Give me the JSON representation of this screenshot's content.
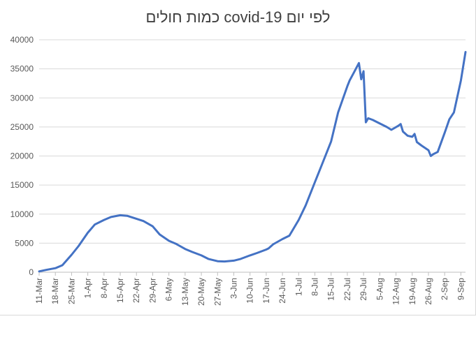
{
  "chart_data": {
    "type": "line",
    "title": "כמות חולים covid-19 לפי יום",
    "xlabel": "",
    "ylabel": "",
    "ylim": [
      0,
      40000
    ],
    "yticks": [
      0,
      5000,
      10000,
      15000,
      20000,
      25000,
      30000,
      35000,
      40000
    ],
    "grid": true,
    "legend": "none",
    "x_tick_labels": [
      "11-Mar",
      "18-Mar",
      "25-Mar",
      "1-Apr",
      "8-Apr",
      "15-Apr",
      "22-Apr",
      "29-Apr",
      "6-May",
      "13-May",
      "20-May",
      "27-May",
      "3-Jun",
      "10-Jun",
      "17-Jun",
      "24-Jun",
      "1-Jul",
      "8-Jul",
      "15-Jul",
      "22-Jul",
      "29-Jul",
      "5-Aug",
      "12-Aug",
      "19-Aug",
      "26-Aug",
      "2-Sep",
      "9-Sep"
    ],
    "x_start": "11-Mar",
    "x_end": "11-Sep",
    "color": "#4472c4",
    "series": [
      {
        "x": [
          "11-Mar",
          "14-Mar",
          "18-Mar",
          "21-Mar",
          "25-Mar",
          "28-Mar",
          "1-Apr",
          "4-Apr",
          "8-Apr",
          "11-Apr",
          "15-Apr",
          "18-Apr",
          "22-Apr",
          "25-Apr",
          "29-Apr",
          "2-May",
          "6-May",
          "9-May",
          "13-May",
          "16-May",
          "20-May",
          "23-May",
          "27-May",
          "30-May",
          "3-Jun",
          "6-Jun",
          "10-Jun",
          "13-Jun",
          "17-Jun",
          "18-Jun",
          "20-Jun",
          "24-Jun",
          "27-Jun",
          "1-Jul",
          "4-Jul",
          "8-Jul",
          "11-Jul",
          "15-Jul",
          "18-Jul",
          "22-Jul",
          "23-Jul",
          "25-Jul",
          "27-Jul",
          "28-Jul",
          "29-Jul",
          "30-Jul",
          "31-Jul",
          "2-Aug",
          "5-Aug",
          "8-Aug",
          "10-Aug",
          "13-Aug",
          "14-Aug",
          "15-Aug",
          "17-Aug",
          "19-Aug",
          "20-Aug",
          "21-Aug",
          "23-Aug",
          "26-Aug",
          "27-Aug",
          "28-Aug",
          "30-Aug",
          "2-Sep",
          "4-Sep",
          "6-Sep",
          "9-Sep",
          "11-Sep"
        ],
        "values": [
          150,
          400,
          700,
          1200,
          3000,
          4500,
          6800,
          8200,
          9000,
          9500,
          9800,
          9700,
          9200,
          8800,
          7900,
          6500,
          5400,
          4900,
          4000,
          3500,
          2900,
          2300,
          1900,
          1850,
          2000,
          2300,
          2900,
          3300,
          3900,
          4100,
          4800,
          5700,
          6300,
          9000,
          11500,
          15500,
          18500,
          22500,
          27500,
          32000,
          33000,
          34500,
          36000,
          33200,
          34600,
          25800,
          26500,
          26200,
          25600,
          25000,
          24500,
          25200,
          25500,
          24200,
          23500,
          23300,
          23800,
          22400,
          21800,
          21000,
          20000,
          20300,
          20700,
          24000,
          26300,
          27500,
          33000,
          37900
        ]
      }
    ]
  }
}
